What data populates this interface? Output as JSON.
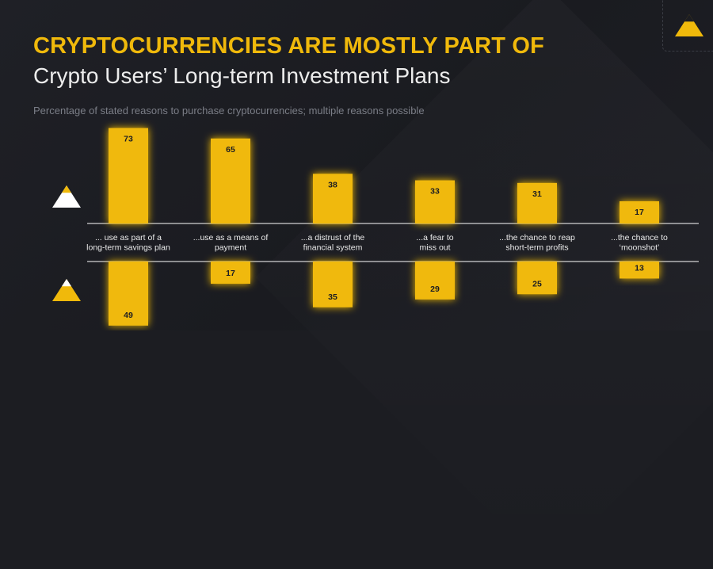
{
  "header": {
    "title": "CRYPTOCURRENCIES ARE MOSTLY PART OF",
    "subtitle": "Crypto Users’ Long-term Investment Plans",
    "note": "Percentage of stated reasons to purchase cryptocurrencies; multiple reasons possible"
  },
  "colors": {
    "accent": "#f0b90b",
    "background": "#1c1d22",
    "baseline": "#ffffff"
  },
  "icons": {
    "top_corner": "yellow-triangle-icon",
    "upper_series": "white-yellow-triangle-icon",
    "lower_series": "yellow-white-triangle-icon"
  },
  "chart_data": {
    "type": "bar",
    "categories": [
      [
        "... use as part of a",
        "long-term savings plan"
      ],
      [
        "...use as a means of",
        "payment"
      ],
      [
        "...a distrust of the",
        "financial system"
      ],
      [
        "...a fear to",
        "miss out"
      ],
      [
        "...the chance to reap",
        "short-term profits"
      ],
      [
        "...the chance to",
        "‘moonshot’"
      ]
    ],
    "series": [
      {
        "values": [
          73,
          65,
          38,
          33,
          31,
          17
        ],
        "direction": "up"
      },
      {
        "values": [
          49,
          17,
          35,
          29,
          25,
          13
        ],
        "direction": "down"
      }
    ]
  }
}
